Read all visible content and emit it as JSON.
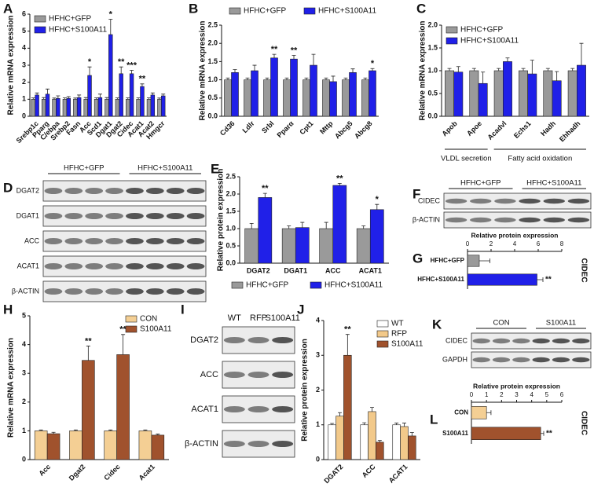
{
  "chart_data": [
    {
      "panel": "A",
      "type": "bar",
      "ylabel": "Relative mRNA expression",
      "legend": "upper left",
      "categories": [
        "Srebp1c",
        "Pparg",
        "C/ebpa",
        "Srebp2",
        "Fasn",
        "Acc",
        "Scd1",
        "Dgat1",
        "Dgat2",
        "Cidec",
        "Acat1",
        "Acat2",
        "Hmgcr"
      ],
      "ylim": [
        0,
        6
      ],
      "yticks": [
        0,
        1,
        2,
        3,
        4,
        5,
        6
      ],
      "series": [
        {
          "name": "HFHC+GFP",
          "color": "#9a9a9a",
          "values": [
            1,
            1,
            1,
            1,
            1,
            1,
            1,
            1,
            1,
            1,
            1,
            1,
            1
          ],
          "errors": [
            0.08,
            0.1,
            0.07,
            0.08,
            0.07,
            0.1,
            0.08,
            0.1,
            0.08,
            0.08,
            0.08,
            0.08,
            0.07
          ]
        },
        {
          "name": "HFHC+S100A11",
          "color": "#2020e8",
          "values": [
            1.25,
            1.3,
            1.05,
            1.05,
            1.1,
            2.4,
            1.1,
            4.8,
            2.5,
            2.5,
            1.75,
            1.25,
            1.2
          ],
          "errors": [
            0.12,
            0.3,
            0.15,
            0.1,
            0.15,
            0.5,
            0.2,
            0.9,
            0.4,
            0.2,
            0.15,
            0.12,
            0.1
          ]
        }
      ],
      "significance": [
        null,
        null,
        null,
        null,
        null,
        "*",
        null,
        "*",
        "**",
        "***",
        "**",
        null,
        null
      ]
    },
    {
      "panel": "B",
      "type": "bar",
      "ylabel": "Relative mRNA expression",
      "legend": "top",
      "categories": [
        "Cd36",
        "Ldlr",
        "Srbl",
        "Pparα",
        "Cpt1",
        "Mttp",
        "Abcg5",
        "Abcg8"
      ],
      "ylim": [
        0,
        2.5
      ],
      "yticks": [
        {
          "value": 0,
          "label": "0.0"
        },
        0.5,
        {
          "value": 1,
          "label": "1.0"
        },
        1.5,
        {
          "value": 2,
          "label": "2.0"
        },
        2.5
      ],
      "series": [
        {
          "name": "HFHC+GFP",
          "color": "#9a9a9a",
          "values": [
            1,
            1,
            1,
            1,
            1,
            1,
            1,
            1
          ],
          "errors": [
            0.05,
            0.05,
            0.05,
            0.05,
            0.05,
            0.05,
            0.05,
            0.05
          ]
        },
        {
          "name": "HFHC+S100A11",
          "color": "#2020e8",
          "values": [
            1.2,
            1.25,
            1.6,
            1.57,
            1.4,
            0.95,
            1.2,
            1.25
          ],
          "errors": [
            0.08,
            0.15,
            0.1,
            0.1,
            0.3,
            0.15,
            0.1,
            0.06
          ]
        }
      ],
      "significance": [
        null,
        null,
        "**",
        "**",
        null,
        null,
        null,
        "*"
      ]
    },
    {
      "panel": "C",
      "type": "bar",
      "ylabel": "Relative mRNA expression",
      "legend": "upper left",
      "categories": [
        "Apob",
        "Apoe",
        "Acadvl",
        "Echs1",
        "Hadh",
        "Ehhadh"
      ],
      "groups": [
        "VLDL secretion",
        "Fatty acid oxidation"
      ],
      "ylim": [
        0,
        2
      ],
      "yticks": [
        {
          "value": 0,
          "label": "0.0"
        },
        0.5,
        {
          "value": 1,
          "label": "1.0"
        },
        1.5,
        {
          "value": 2,
          "label": "2.0"
        }
      ],
      "series": [
        {
          "name": "HFHC+GFP",
          "color": "#9a9a9a",
          "values": [
            1,
            1,
            1,
            1,
            1,
            1
          ],
          "errors": [
            0.05,
            0.05,
            0.05,
            0.05,
            0.05,
            0.05
          ]
        },
        {
          "name": "HFHC+S100A11",
          "color": "#2020e8",
          "values": [
            0.97,
            0.72,
            1.2,
            0.93,
            0.78,
            1.12
          ],
          "errors": [
            0.12,
            0.25,
            0.08,
            0.3,
            0.2,
            0.48
          ]
        }
      ]
    },
    {
      "panel": "E",
      "type": "bar",
      "ylabel": "Relative protein expression",
      "legend": "bottom",
      "categories": [
        "DGAT2",
        "DGAT1",
        "ACC",
        "ACAT1"
      ],
      "ylim": [
        0,
        2.5
      ],
      "yticks": [
        {
          "value": 0,
          "label": "0.0"
        },
        0.5,
        {
          "value": 1,
          "label": "1.0"
        },
        1.5,
        {
          "value": 2,
          "label": "2.0"
        },
        2.5
      ],
      "series": [
        {
          "name": "HFHC+GFP",
          "color": "#9a9a9a",
          "values": [
            1,
            1,
            1,
            1
          ],
          "errors": [
            0.15,
            0.08,
            0.18,
            0.08
          ]
        },
        {
          "name": "HFHC+S100A11",
          "color": "#2020e8",
          "values": [
            1.9,
            1.03,
            2.25,
            1.55
          ],
          "errors": [
            0.12,
            0.15,
            0.06,
            0.15
          ]
        }
      ],
      "significance": [
        "**",
        null,
        "**",
        "*"
      ]
    },
    {
      "panel": "G",
      "type": "bar",
      "orientation": "horizontal",
      "xlabel": "Relative protein expression",
      "annotation": "CIDEC",
      "categories": [
        "HFHC+GFP",
        "HFHC+S100A11"
      ],
      "values": [
        1,
        5.9
      ],
      "errors": [
        0.9,
        0.5
      ],
      "colors": [
        "#9a9a9a",
        "#2020e8"
      ],
      "xlim": [
        0,
        8
      ],
      "xticks": [
        0,
        2,
        4,
        6,
        8
      ],
      "significance": [
        null,
        "**"
      ]
    },
    {
      "panel": "H",
      "type": "bar",
      "ylabel": "Relative mRNA expression",
      "legend": "upper right",
      "categories": [
        "Acc",
        "Dgat2",
        "Cidec",
        "Acat1"
      ],
      "ylim": [
        0,
        5
      ],
      "yticks": [
        0,
        1,
        2,
        3,
        4,
        5
      ],
      "series": [
        {
          "name": "CON",
          "color": "#f4cf94",
          "values": [
            1,
            1,
            1,
            1
          ],
          "errors": [
            0.03,
            0.03,
            0.03,
            0.03
          ]
        },
        {
          "name": "S100A11",
          "color": "#a0522d",
          "values": [
            0.9,
            3.45,
            3.65,
            0.85
          ],
          "errors": [
            0.05,
            0.5,
            0.7,
            0.04
          ]
        }
      ],
      "significance": [
        null,
        "**",
        "**",
        null
      ]
    },
    {
      "panel": "J",
      "type": "bar",
      "ylabel": "Relative protein expression",
      "legend": "upper right",
      "categories": [
        "DGAT2",
        "ACC",
        "ACAT1"
      ],
      "ylim": [
        0,
        4
      ],
      "yticks": [
        0,
        1,
        2,
        3,
        4
      ],
      "series": [
        {
          "name": "WT",
          "color": "#ffffff",
          "values": [
            1,
            1,
            1
          ],
          "errors": [
            0.04,
            0.06,
            0.05
          ]
        },
        {
          "name": "RFP",
          "color": "#f2c98a",
          "values": [
            1.25,
            1.38,
            0.95
          ],
          "errors": [
            0.1,
            0.12,
            0.1
          ]
        },
        {
          "name": "S100A11",
          "color": "#a0522d",
          "values": [
            3,
            0.5,
            0.68
          ],
          "errors": [
            0.6,
            0.05,
            0.1
          ]
        }
      ],
      "significance": [
        "**",
        null,
        null
      ]
    },
    {
      "panel": "L",
      "type": "bar",
      "orientation": "horizontal",
      "xlabel": "Relative protein expression",
      "annotation": "CIDEC",
      "categories": [
        "CON",
        "S100A11"
      ],
      "values": [
        1,
        4.6
      ],
      "errors": [
        0.3,
        0.2
      ],
      "colors": [
        "#f4cf94",
        "#a0522d"
      ],
      "xlim": [
        0,
        6
      ],
      "xticks": [
        0,
        1,
        2,
        3,
        4,
        5,
        6
      ],
      "significance": [
        null,
        "**"
      ]
    }
  ],
  "blots": [
    {
      "panel": "D",
      "groups": [
        "HFHC+GFP",
        "HFHC+S100A11"
      ],
      "rows": [
        "DGAT2",
        "DGAT1",
        "ACC",
        "ACAT1",
        "β-ACTIN"
      ]
    },
    {
      "panel": "F",
      "groups": [
        "HFHC+GFP",
        "HFHC+S100A11"
      ],
      "rows": [
        "CIDEC",
        "β-ACTIN"
      ]
    },
    {
      "panel": "I",
      "columns": [
        "WT",
        "RFP",
        "S100A11"
      ],
      "rows": [
        "DGAT2",
        "ACC",
        "ACAT1",
        "β-ACTIN"
      ]
    },
    {
      "panel": "K",
      "groups": [
        "CON",
        "S100A11"
      ],
      "rows": [
        "CIDEC",
        "GAPDH"
      ]
    }
  ]
}
